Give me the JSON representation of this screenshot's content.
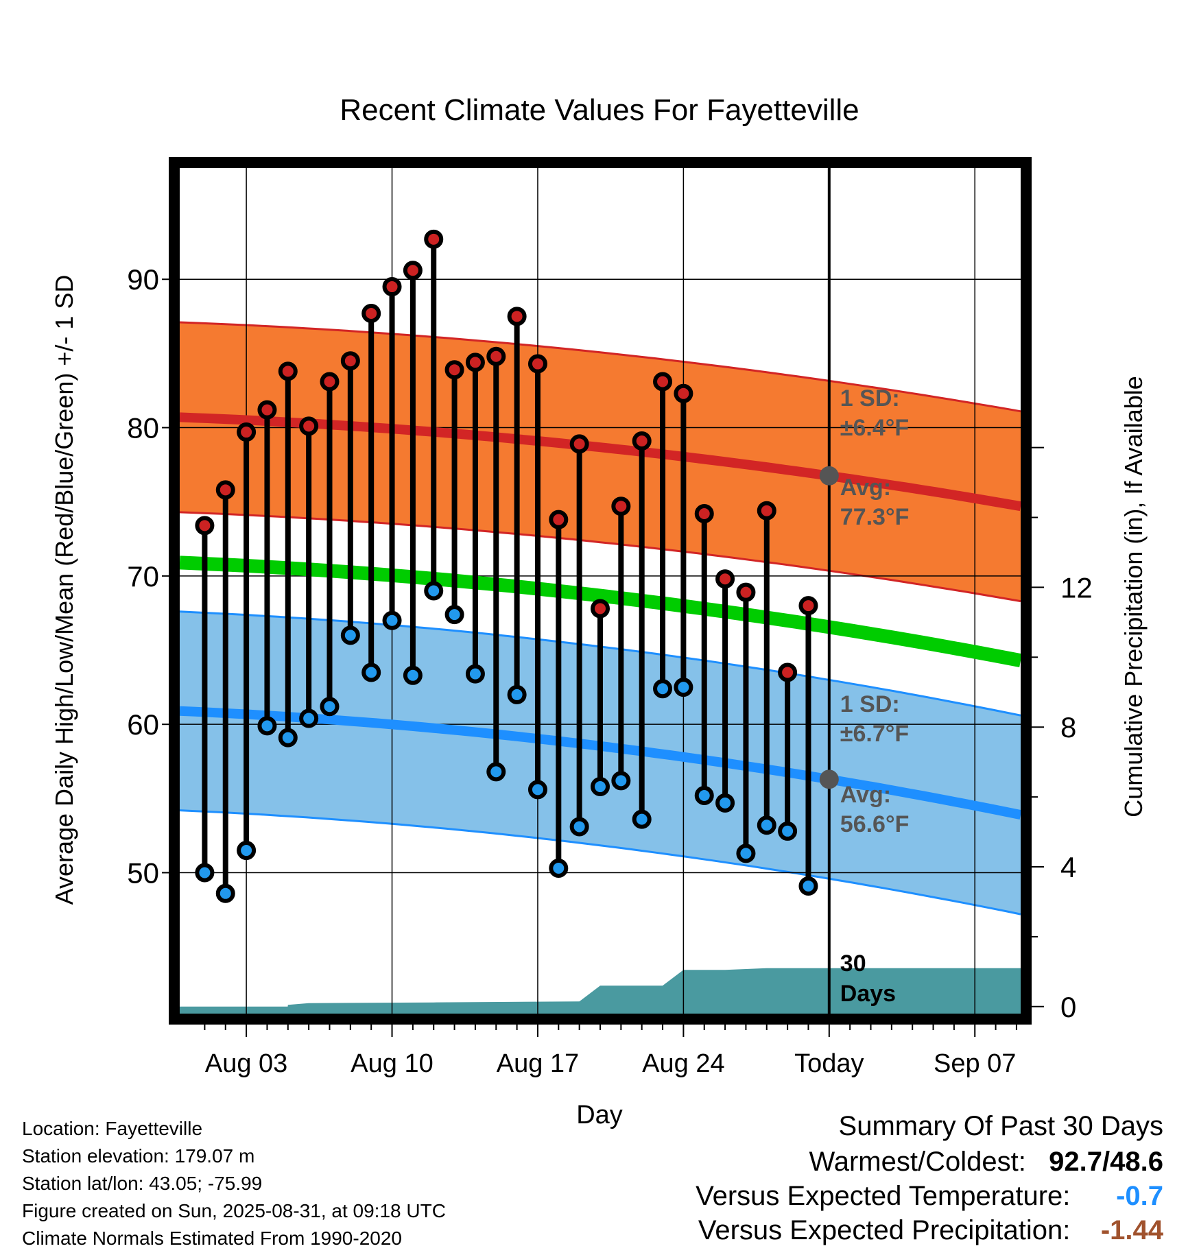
{
  "chart_data": {
    "type": "line",
    "title": "Recent Climate Values For Fayetteville",
    "xlabel": "Day",
    "ylabel": "Average Daily High/Low/Mean (Red/Blue/Green) +/- 1 SD",
    "y2label": "Cumulative Precipitation (in), If Available",
    "x_tick_labels": [
      "Aug 03",
      "Aug 10",
      "Aug 17",
      "Aug 24",
      "Today",
      "Sep 07"
    ],
    "x_tick_days": [
      3,
      10,
      17,
      24,
      31,
      38
    ],
    "x_range_days": [
      -0.2,
      40.2
    ],
    "y_ticks": [
      50,
      60,
      70,
      80,
      90
    ],
    "y_range": [
      40.5,
      97.5
    ],
    "y2_ticks": [
      0,
      4,
      8,
      12
    ],
    "y2_range": [
      -0.2,
      24
    ],
    "grid": true,
    "today_day": 31,
    "days": [
      1,
      2,
      3,
      4,
      5,
      6,
      7,
      8,
      9,
      10,
      11,
      12,
      13,
      14,
      15,
      16,
      17,
      18,
      19,
      20,
      21,
      22,
      23,
      24,
      25,
      26,
      27,
      28,
      29,
      30
    ],
    "highs": [
      73.4,
      75.8,
      79.7,
      81.2,
      83.8,
      80.1,
      83.1,
      84.5,
      87.7,
      89.5,
      90.6,
      92.7,
      83.9,
      84.4,
      84.8,
      87.5,
      84.3,
      73.8,
      78.9,
      67.8,
      74.7,
      79.1,
      83.1,
      82.3,
      74.2,
      69.8,
      68.9,
      74.4,
      63.5,
      68.0
    ],
    "lows": [
      50.0,
      48.6,
      51.5,
      59.9,
      59.1,
      60.4,
      61.2,
      66.0,
      63.5,
      67.0,
      63.3,
      69.0,
      67.4,
      63.4,
      56.8,
      62.0,
      55.6,
      50.3,
      53.1,
      55.8,
      56.2,
      53.6,
      62.4,
      62.5,
      55.2,
      54.7,
      51.3,
      53.2,
      52.8,
      49.1
    ],
    "normal_high": {
      "start": 80.7,
      "end": 74.7
    },
    "normal_low": {
      "start": 60.9,
      "end": 53.9
    },
    "normal_mean": {
      "start": 70.9,
      "end": 64.3
    },
    "sd_high": 6.4,
    "sd_low": 6.7,
    "precip_cumulative": [
      {
        "day": 5,
        "value": 0.05
      },
      {
        "day": 6,
        "value": 0.1
      },
      {
        "day": 12,
        "value": 0.12
      },
      {
        "day": 19,
        "value": 0.15
      },
      {
        "day": 20,
        "value": 0.6
      },
      {
        "day": 22,
        "value": 0.6
      },
      {
        "day": 23,
        "value": 0.6
      },
      {
        "day": 24,
        "value": 1.05
      },
      {
        "day": 26,
        "value": 1.05
      },
      {
        "day": 28,
        "value": 1.1
      },
      {
        "day": 30,
        "value": 1.1
      },
      {
        "day": 40.2,
        "value": 1.1
      }
    ],
    "annotations": {
      "high_sd_label": "1 SD:",
      "high_sd_value": "±6.4°F",
      "high_avg_label": "Avg:",
      "high_avg_value": "77.3°F",
      "low_sd_label": "1 SD:",
      "low_sd_value": "±6.7°F",
      "low_avg_label": "Avg:",
      "low_avg_value": "56.6°F",
      "days_line1": "30",
      "days_line2": "Days"
    },
    "colors": {
      "high_band": "#f57a30",
      "high_line": "#d22525",
      "low_band": "#85c1e9",
      "low_line": "#1e8fff",
      "mean_line": "#00cc00",
      "precip": "#4a9aa0",
      "high_marker": "#cc2222",
      "low_marker": "#2299ee",
      "annotation": "#555555"
    }
  },
  "info": {
    "location": "Location: Fayetteville",
    "elevation": "Station elevation: 179.07 m",
    "latlon": "Station lat/lon: 43.05; -75.99",
    "created": "Figure created on Sun, 2025-08-31, at 09:18 UTC",
    "normals": "Climate Normals Estimated From 1990-2020"
  },
  "summary": {
    "title": "Summary Of Past 30 Days",
    "warm_cold_label": "Warmest/Coldest:",
    "warm_cold_value": "92.7/48.6",
    "temp_label": "Versus Expected Temperature:",
    "temp_value": "-0.7",
    "temp_color": "#1e8fff",
    "precip_label": "Versus Expected Precipitation:",
    "precip_value": "-1.44",
    "precip_color": "#a0522d"
  }
}
